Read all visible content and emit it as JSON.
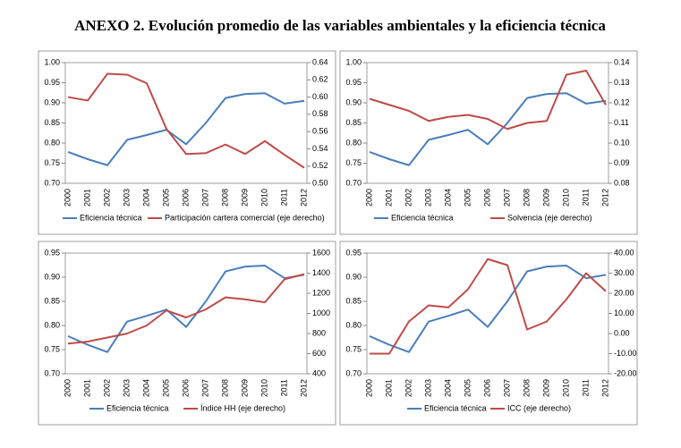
{
  "title": "ANEXO 2. Evolución promedio de las variables ambientales y la eficiencia técnica",
  "chart_data": [
    {
      "type": "line",
      "categories": [
        "2000",
        "2001",
        "2002",
        "2003",
        "2004",
        "2005",
        "2006",
        "2007",
        "2008",
        "2009",
        "2010",
        "2011",
        "2012"
      ],
      "series": [
        {
          "name": "Eficiencia técnica",
          "color": "#4a7ebb",
          "values": [
            0.778,
            0.76,
            0.745,
            0.808,
            0.82,
            0.833,
            0.797,
            0.85,
            0.912,
            0.922,
            0.924,
            0.898,
            0.905
          ]
        },
        {
          "name": "Participación cartera comercial (eje derecho)",
          "color": "#be4b48",
          "axis": "y2",
          "values": [
            0.6,
            0.596,
            0.627,
            0.626,
            0.616,
            0.563,
            0.534,
            0.535,
            0.545,
            0.534,
            0.549,
            0.533,
            0.518
          ]
        }
      ],
      "ylim": [
        0.7,
        1.0
      ],
      "yticks": [
        {
          "value": 0.7,
          "label": "0.70"
        },
        0.75,
        {
          "value": 0.8,
          "label": "0.80"
        },
        0.85,
        {
          "value": 0.9,
          "label": "0.90"
        },
        0.95,
        {
          "value": 1.0,
          "label": "1.00"
        }
      ],
      "y2lim": [
        0.5,
        0.64
      ],
      "y2ticks": [
        {
          "value": 0.5,
          "label": "0.50"
        },
        0.52,
        0.54,
        0.56,
        0.58,
        {
          "value": 0.6,
          "label": "0.60"
        },
        0.62,
        0.64
      ]
    },
    {
      "type": "line",
      "categories": [
        "2000",
        "2001",
        "2002",
        "2003",
        "2004",
        "2005",
        "2006",
        "2007",
        "2008",
        "2009",
        "2010",
        "2011",
        "2012"
      ],
      "series": [
        {
          "name": "Eficiencia técnica",
          "color": "#4a7ebb",
          "values": [
            0.778,
            0.76,
            0.745,
            0.808,
            0.82,
            0.833,
            0.797,
            0.85,
            0.912,
            0.922,
            0.924,
            0.898,
            0.905
          ]
        },
        {
          "name": "Solvencia (eje derecho)",
          "color": "#be4b48",
          "axis": "y2",
          "values": [
            0.122,
            0.119,
            0.116,
            0.111,
            0.113,
            0.114,
            0.112,
            0.107,
            0.11,
            0.111,
            0.134,
            0.136,
            0.119
          ]
        }
      ],
      "ylim": [
        0.7,
        1.0
      ],
      "yticks": [
        {
          "value": 0.7,
          "label": "0.70"
        },
        0.75,
        {
          "value": 0.8,
          "label": "0.80"
        },
        0.85,
        {
          "value": 0.9,
          "label": "0.90"
        },
        0.95,
        {
          "value": 1.0,
          "label": "1.00"
        }
      ],
      "y2lim": [
        0.08,
        0.14
      ],
      "y2ticks": [
        0.08,
        0.09,
        {
          "value": 0.1,
          "label": "0.10"
        },
        0.11,
        0.12,
        0.13,
        0.14
      ]
    },
    {
      "type": "line",
      "categories": [
        "2000",
        "2001",
        "2002",
        "2003",
        "2004",
        "2005",
        "2006",
        "2007",
        "2008",
        "2009",
        "2010",
        "2011",
        "2012"
      ],
      "series": [
        {
          "name": "Eficiencia técnica",
          "color": "#4a7ebb",
          "values": [
            0.778,
            0.76,
            0.745,
            0.808,
            0.82,
            0.833,
            0.797,
            0.85,
            0.912,
            0.922,
            0.924,
            0.898,
            0.905
          ]
        },
        {
          "name": "Índice HH (eje derecho)",
          "color": "#be4b48",
          "axis": "y2",
          "values": [
            700,
            720,
            760,
            800,
            880,
            1030,
            960,
            1040,
            1160,
            1140,
            1110,
            1340,
            1390
          ]
        }
      ],
      "ylim": [
        0.7,
        0.95
      ],
      "yticks": [
        {
          "value": 0.7,
          "label": "0.70"
        },
        0.75,
        {
          "value": 0.8,
          "label": "0.80"
        },
        0.85,
        {
          "value": 0.9,
          "label": "0.90"
        },
        0.95
      ],
      "y2lim": [
        400,
        1600
      ],
      "y2ticks": [
        400,
        600,
        800,
        1000,
        1200,
        1400,
        1600
      ]
    },
    {
      "type": "line",
      "categories": [
        "2000",
        "2001",
        "2002",
        "2003",
        "2004",
        "2005",
        "2006",
        "2007",
        "2008",
        "2009",
        "2010",
        "2011",
        "2012"
      ],
      "series": [
        {
          "name": "Eficiencia técnica",
          "color": "#4a7ebb",
          "values": [
            0.778,
            0.76,
            0.745,
            0.808,
            0.82,
            0.833,
            0.797,
            0.85,
            0.912,
            0.922,
            0.924,
            0.898,
            0.905
          ]
        },
        {
          "name": "ICC (eje derecho)",
          "color": "#be4b48",
          "axis": "y2",
          "values": [
            -10,
            -10,
            6,
            14,
            13,
            22,
            37,
            34,
            2,
            6,
            17,
            30,
            21
          ]
        }
      ],
      "ylim": [
        0.7,
        0.95
      ],
      "yticks": [
        {
          "value": 0.7,
          "label": "0.70"
        },
        0.75,
        {
          "value": 0.8,
          "label": "0.80"
        },
        0.85,
        {
          "value": 0.9,
          "label": "0.90"
        },
        0.95
      ],
      "y2lim": [
        -20,
        40
      ],
      "y2ticks": [
        {
          "value": -20,
          "label": "-20.00"
        },
        {
          "value": -10,
          "label": "-10.00"
        },
        {
          "value": 0,
          "label": "0.00"
        },
        {
          "value": 10,
          "label": "10.00"
        },
        {
          "value": 20,
          "label": "20.00"
        },
        {
          "value": 30,
          "label": "30.00"
        },
        {
          "value": 40,
          "label": "40.00"
        }
      ]
    }
  ]
}
